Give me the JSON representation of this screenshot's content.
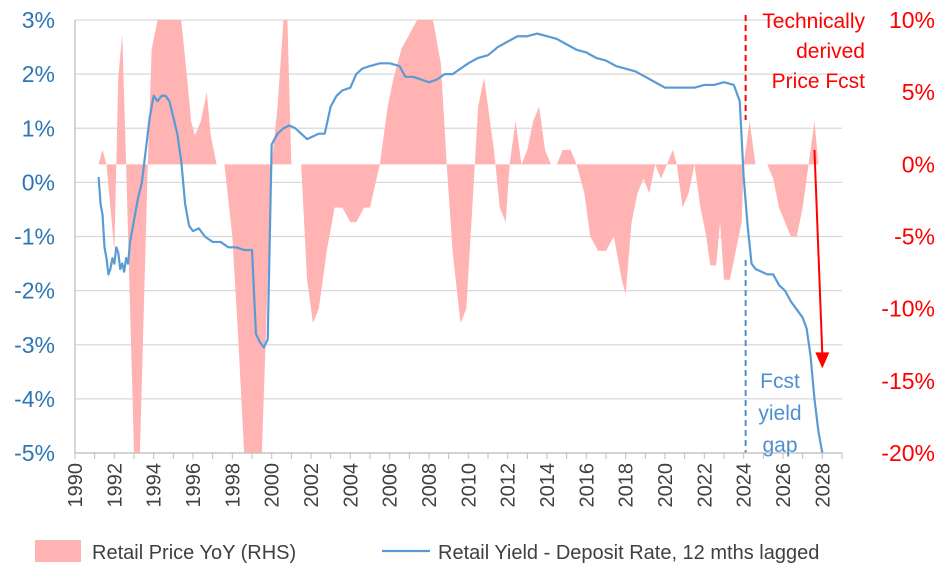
{
  "chart_data": {
    "type": "line",
    "series": [
      {
        "name": "Retail Price YoY (RHS)",
        "kind": "area",
        "axis": "right",
        "color": "#ffb3b3",
        "points": [
          [
            1991.2,
            0
          ],
          [
            1991.4,
            1
          ],
          [
            1991.6,
            0
          ],
          [
            1991.8,
            -3
          ],
          [
            1992.0,
            -6
          ],
          [
            1992.2,
            6
          ],
          [
            1992.4,
            9
          ],
          [
            1992.6,
            0
          ],
          [
            1992.8,
            -10
          ],
          [
            1993.0,
            -20
          ],
          [
            1993.3,
            -20
          ],
          [
            1993.5,
            -10
          ],
          [
            1993.7,
            0
          ],
          [
            1993.9,
            8
          ],
          [
            1994.2,
            10
          ],
          [
            1994.6,
            10
          ],
          [
            1995.0,
            10
          ],
          [
            1995.4,
            10
          ],
          [
            1995.7,
            6
          ],
          [
            1995.9,
            3
          ],
          [
            1996.1,
            2
          ],
          [
            1996.4,
            3
          ],
          [
            1996.7,
            5
          ],
          [
            1996.9,
            2
          ],
          [
            1997.2,
            0
          ],
          [
            1997.6,
            0
          ],
          [
            1998.0,
            -5
          ],
          [
            1998.3,
            -12
          ],
          [
            1998.6,
            -20
          ],
          [
            1999.0,
            -20
          ],
          [
            1999.5,
            -20
          ],
          [
            1999.8,
            -8
          ],
          [
            2000.0,
            0
          ],
          [
            2000.3,
            4
          ],
          [
            2000.6,
            10
          ],
          [
            2000.8,
            10
          ],
          [
            2001.0,
            0
          ],
          [
            2001.5,
            0
          ],
          [
            2001.8,
            -8
          ],
          [
            2002.1,
            -11
          ],
          [
            2002.4,
            -10
          ],
          [
            2002.8,
            -6
          ],
          [
            2003.2,
            -3
          ],
          [
            2003.6,
            -3
          ],
          [
            2004.0,
            -4
          ],
          [
            2004.3,
            -4
          ],
          [
            2004.7,
            -3
          ],
          [
            2005.0,
            -3
          ],
          [
            2005.5,
            0
          ],
          [
            2005.9,
            4
          ],
          [
            2006.2,
            6
          ],
          [
            2006.6,
            8
          ],
          [
            2007.0,
            9
          ],
          [
            2007.4,
            10
          ],
          [
            2007.8,
            10
          ],
          [
            2008.2,
            10
          ],
          [
            2008.6,
            7
          ],
          [
            2008.9,
            0
          ],
          [
            2009.2,
            -6
          ],
          [
            2009.6,
            -11
          ],
          [
            2009.9,
            -10
          ],
          [
            2010.2,
            -3
          ],
          [
            2010.5,
            4
          ],
          [
            2010.8,
            6
          ],
          [
            2011.1,
            3
          ],
          [
            2011.3,
            1
          ],
          [
            2011.6,
            -3
          ],
          [
            2011.9,
            -4
          ],
          [
            2012.1,
            0
          ],
          [
            2012.4,
            3
          ],
          [
            2012.7,
            0
          ],
          [
            2013.0,
            1
          ],
          [
            2013.3,
            3
          ],
          [
            2013.6,
            4
          ],
          [
            2013.9,
            1
          ],
          [
            2014.2,
            0
          ],
          [
            2014.5,
            0
          ],
          [
            2014.8,
            1
          ],
          [
            2015.2,
            1
          ],
          [
            2015.5,
            0
          ],
          [
            2015.9,
            -2
          ],
          [
            2016.2,
            -5
          ],
          [
            2016.6,
            -6
          ],
          [
            2017.0,
            -6
          ],
          [
            2017.4,
            -5
          ],
          [
            2017.8,
            -8
          ],
          [
            2018.0,
            -9
          ],
          [
            2018.3,
            -4
          ],
          [
            2018.6,
            -2
          ],
          [
            2018.9,
            -1
          ],
          [
            2019.2,
            -2
          ],
          [
            2019.5,
            0
          ],
          [
            2019.8,
            -1
          ],
          [
            2020.1,
            0
          ],
          [
            2020.4,
            1
          ],
          [
            2020.6,
            0
          ],
          [
            2020.9,
            -3
          ],
          [
            2021.2,
            -2
          ],
          [
            2021.5,
            0
          ],
          [
            2021.8,
            -3
          ],
          [
            2022.1,
            -5
          ],
          [
            2022.3,
            -7
          ],
          [
            2022.6,
            -7
          ],
          [
            2022.8,
            -4
          ],
          [
            2023.0,
            -8
          ],
          [
            2023.3,
            -8
          ],
          [
            2023.6,
            -6
          ],
          [
            2023.9,
            -4
          ],
          [
            2024.0,
            0
          ],
          [
            2024.3,
            3
          ],
          [
            2024.6,
            0
          ],
          [
            2024.9,
            0
          ],
          [
            2025.2,
            0
          ],
          [
            2025.5,
            -1
          ],
          [
            2025.8,
            -3
          ],
          [
            2026.1,
            -4
          ],
          [
            2026.4,
            -5
          ],
          [
            2026.7,
            -5
          ],
          [
            2027.0,
            -3
          ],
          [
            2027.3,
            0
          ],
          [
            2027.6,
            3
          ],
          [
            2027.8,
            0
          ]
        ]
      },
      {
        "name": "Retail Yield - Deposit Rate, 12 mths lagged",
        "kind": "line",
        "axis": "left",
        "color": "#5b9bd5",
        "points": [
          [
            1991.2,
            0.1
          ],
          [
            1991.3,
            -0.4
          ],
          [
            1991.4,
            -0.6
          ],
          [
            1991.5,
            -1.2
          ],
          [
            1991.6,
            -1.4
          ],
          [
            1991.7,
            -1.7
          ],
          [
            1991.8,
            -1.6
          ],
          [
            1991.9,
            -1.4
          ],
          [
            1992.0,
            -1.5
          ],
          [
            1992.1,
            -1.2
          ],
          [
            1992.2,
            -1.3
          ],
          [
            1992.3,
            -1.6
          ],
          [
            1992.4,
            -1.5
          ],
          [
            1992.5,
            -1.65
          ],
          [
            1992.6,
            -1.4
          ],
          [
            1992.7,
            -1.5
          ],
          [
            1992.8,
            -1.1
          ],
          [
            1992.9,
            -0.9
          ],
          [
            1993.0,
            -0.7
          ],
          [
            1993.2,
            -0.3
          ],
          [
            1993.4,
            0.0
          ],
          [
            1993.6,
            0.6
          ],
          [
            1993.8,
            1.2
          ],
          [
            1994.0,
            1.6
          ],
          [
            1994.2,
            1.5
          ],
          [
            1994.4,
            1.6
          ],
          [
            1994.6,
            1.6
          ],
          [
            1994.8,
            1.5
          ],
          [
            1995.0,
            1.2
          ],
          [
            1995.2,
            0.9
          ],
          [
            1995.4,
            0.4
          ],
          [
            1995.6,
            -0.4
          ],
          [
            1995.8,
            -0.8
          ],
          [
            1996.0,
            -0.9
          ],
          [
            1996.3,
            -0.85
          ],
          [
            1996.6,
            -1.0
          ],
          [
            1997.0,
            -1.1
          ],
          [
            1997.4,
            -1.1
          ],
          [
            1997.8,
            -1.2
          ],
          [
            1998.2,
            -1.2
          ],
          [
            1998.6,
            -1.25
          ],
          [
            1999.0,
            -1.25
          ],
          [
            1999.2,
            -2.8
          ],
          [
            1999.4,
            -2.95
          ],
          [
            1999.6,
            -3.05
          ],
          [
            1999.8,
            -2.9
          ],
          [
            2000.0,
            0.7
          ],
          [
            2000.3,
            0.9
          ],
          [
            2000.6,
            1.0
          ],
          [
            2000.9,
            1.05
          ],
          [
            2001.2,
            1.0
          ],
          [
            2001.5,
            0.9
          ],
          [
            2001.8,
            0.8
          ],
          [
            2002.1,
            0.85
          ],
          [
            2002.4,
            0.9
          ],
          [
            2002.7,
            0.9
          ],
          [
            2003.0,
            1.4
          ],
          [
            2003.3,
            1.6
          ],
          [
            2003.6,
            1.7
          ],
          [
            2004.0,
            1.75
          ],
          [
            2004.3,
            2.0
          ],
          [
            2004.6,
            2.1
          ],
          [
            2005.0,
            2.15
          ],
          [
            2005.5,
            2.2
          ],
          [
            2006.0,
            2.2
          ],
          [
            2006.5,
            2.15
          ],
          [
            2006.8,
            1.95
          ],
          [
            2007.2,
            1.95
          ],
          [
            2007.6,
            1.9
          ],
          [
            2008.0,
            1.85
          ],
          [
            2008.4,
            1.9
          ],
          [
            2008.8,
            2.0
          ],
          [
            2009.2,
            2.0
          ],
          [
            2009.6,
            2.1
          ],
          [
            2010.0,
            2.2
          ],
          [
            2010.5,
            2.3
          ],
          [
            2011.0,
            2.35
          ],
          [
            2011.5,
            2.5
          ],
          [
            2012.0,
            2.6
          ],
          [
            2012.5,
            2.7
          ],
          [
            2013.0,
            2.7
          ],
          [
            2013.5,
            2.75
          ],
          [
            2014.0,
            2.7
          ],
          [
            2014.5,
            2.65
          ],
          [
            2015.0,
            2.55
          ],
          [
            2015.5,
            2.45
          ],
          [
            2016.0,
            2.4
          ],
          [
            2016.5,
            2.3
          ],
          [
            2017.0,
            2.25
          ],
          [
            2017.5,
            2.15
          ],
          [
            2018.0,
            2.1
          ],
          [
            2018.5,
            2.05
          ],
          [
            2019.0,
            1.95
          ],
          [
            2019.5,
            1.85
          ],
          [
            2020.0,
            1.75
          ],
          [
            2020.5,
            1.75
          ],
          [
            2021.0,
            1.75
          ],
          [
            2021.5,
            1.75
          ],
          [
            2022.0,
            1.8
          ],
          [
            2022.5,
            1.8
          ],
          [
            2023.0,
            1.85
          ],
          [
            2023.5,
            1.8
          ],
          [
            2023.8,
            1.5
          ],
          [
            2024.0,
            0.1
          ],
          [
            2024.2,
            -0.8
          ],
          [
            2024.4,
            -1.5
          ],
          [
            2024.6,
            -1.6
          ],
          [
            2024.9,
            -1.65
          ],
          [
            2025.2,
            -1.7
          ],
          [
            2025.5,
            -1.7
          ],
          [
            2025.8,
            -1.9
          ],
          [
            2026.1,
            -2.0
          ],
          [
            2026.4,
            -2.2
          ],
          [
            2026.7,
            -2.35
          ],
          [
            2027.0,
            -2.5
          ],
          [
            2027.2,
            -2.7
          ],
          [
            2027.4,
            -3.2
          ],
          [
            2027.6,
            -4.0
          ],
          [
            2027.8,
            -4.6
          ],
          [
            2028.0,
            -5.0
          ]
        ]
      }
    ],
    "xlim": [
      1990,
      2029
    ],
    "ylim_left": [
      -5,
      3
    ],
    "ylim_right": [
      -20,
      10
    ],
    "x_ticks": [
      "1990",
      "1992",
      "1994",
      "1996",
      "1998",
      "2000",
      "2002",
      "2004",
      "2006",
      "2008",
      "2010",
      "2012",
      "2014",
      "2016",
      "2018",
      "2020",
      "2022",
      "2024",
      "2026",
      "2028"
    ],
    "y_left_ticks": [
      "3%",
      "2%",
      "1%",
      "0%",
      "-1%",
      "-2%",
      "-3%",
      "-4%",
      "-5%"
    ],
    "y_right_ticks": [
      "10%",
      "5%",
      "0%",
      "-5%",
      "-10%",
      "-15%",
      "-20%"
    ],
    "forecast_start": 2024.1,
    "annotations": {
      "price_forecast": [
        "Technically",
        "derived",
        "Price Fcst"
      ],
      "yield_gap": [
        "Fcst",
        "yield",
        "gap"
      ]
    },
    "arrow": {
      "from": [
        2027.6,
        1
      ],
      "to": [
        2028.0,
        -14
      ]
    },
    "legend": {
      "position": "bottom",
      "entries": [
        "Retail Price YoY (RHS)",
        "Retail Yield - Deposit Rate, 12 mths lagged"
      ]
    },
    "grid": true
  }
}
